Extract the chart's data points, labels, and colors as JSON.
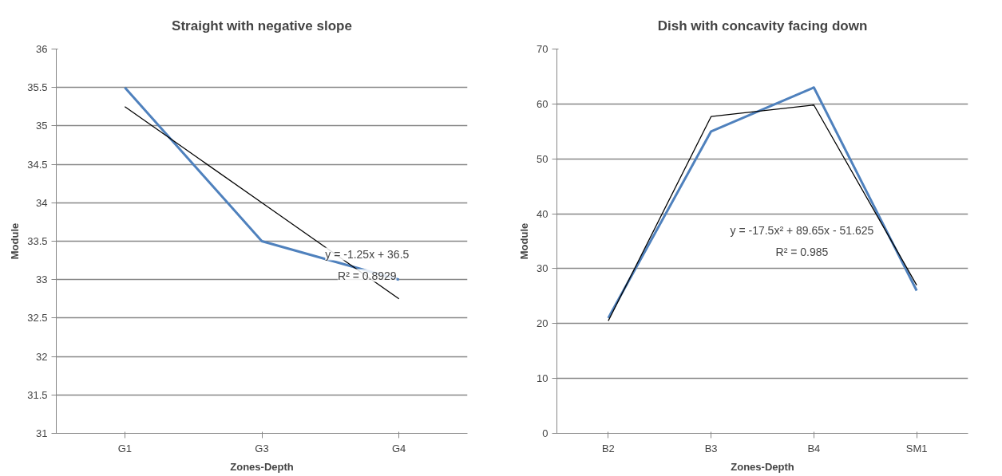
{
  "chart_data": [
    {
      "type": "line",
      "title": "Straight with negative slope",
      "xlabel": "Zones-Depth",
      "ylabel": "Module",
      "categories": [
        "G1",
        "G3",
        "G4"
      ],
      "series": [
        {
          "color": "#4f81bd",
          "values": [
            35.5,
            33.5,
            33
          ]
        },
        {
          "type": "line",
          "color": "#000000",
          "values": [
            35.25,
            34.0,
            32.75
          ]
        }
      ],
      "ylim": [
        31,
        36
      ],
      "yticks": [
        31,
        31.5,
        32,
        32.5,
        33,
        33.5,
        34,
        34.5,
        35,
        35.5,
        36
      ],
      "grid": "y",
      "marker": "none",
      "annotations": [
        "y = -1.25x + 36.5",
        "R² = 0.8929"
      ]
    },
    {
      "type": "line",
      "title": "Dish with concavity facing down",
      "xlabel": "Zones-Depth",
      "ylabel": "Module",
      "categories": [
        "B2",
        "B3",
        "B4",
        "SM1"
      ],
      "series": [
        {
          "color": "#4f81bd",
          "values": [
            21,
            55,
            63,
            26
          ]
        },
        {
          "type": "line",
          "color": "#000000",
          "values": [
            20.5,
            57.7,
            59.8,
            27.0
          ]
        }
      ],
      "ylim": [
        0,
        70
      ],
      "yticks": [
        0,
        10,
        20,
        30,
        40,
        50,
        60,
        70
      ],
      "grid": "y",
      "marker": "none",
      "annotations": [
        "y = -17.5x² + 89.65x - 51.625",
        "R² = 0.985"
      ]
    }
  ]
}
